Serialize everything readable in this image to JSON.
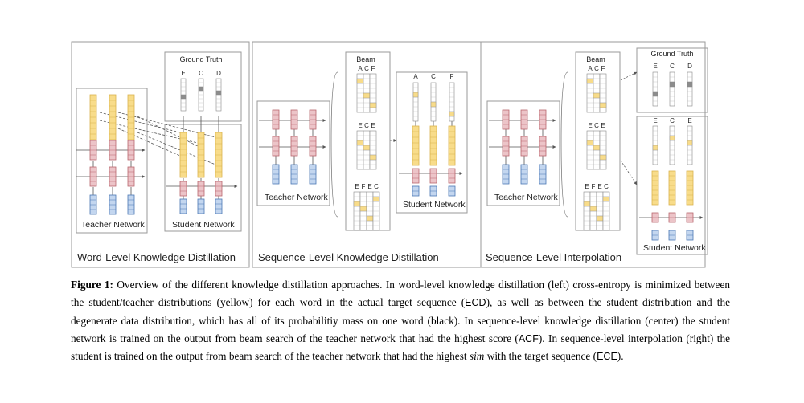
{
  "panels": {
    "word_level": {
      "title": "Word-Level Knowledge Distillation",
      "teacher_label": "Teacher Network",
      "student_label": "Student Network",
      "ground_truth": {
        "title": "Ground Truth",
        "tokens": [
          "E",
          "C",
          "D"
        ]
      }
    },
    "sequence_level": {
      "title": "Sequence-Level Knowledge Distillation",
      "teacher_label": "Teacher Network",
      "student_label": "Student Network",
      "beam": {
        "title": "Beam",
        "candidates": [
          [
            "A",
            "C",
            "F"
          ],
          [
            "E",
            "C",
            "E"
          ],
          [
            "E",
            "F",
            "E",
            "C"
          ]
        ]
      },
      "output_tokens": [
        "A",
        "C",
        "F"
      ]
    },
    "interpolation": {
      "title": "Sequence-Level Interpolation",
      "teacher_label": "Teacher Network",
      "student_label": "Student Network",
      "beam": {
        "title": "Beam",
        "candidates": [
          [
            "A",
            "C",
            "F"
          ],
          [
            "E",
            "C",
            "E"
          ],
          [
            "E",
            "F",
            "E",
            "C"
          ]
        ]
      },
      "ground_truth": {
        "title": "Ground Truth",
        "tokens": [
          "E",
          "C",
          "D"
        ]
      },
      "output_tokens": [
        "E",
        "C",
        "E"
      ]
    }
  },
  "caption": {
    "label": "Figure 1:",
    "s1": " Overview of the different knowledge distillation approaches. In word-level knowledge distillation (left) cross-entropy is minimized between the student/teacher distributions (yellow) for each word in the actual target sequence (",
    "s1_code": "ECD",
    "s2": "), as well as between the student distribution and the degenerate data distribution, which has all of its probabilitiy mass on one word (black). In sequence-level knowledge distillation (center) the student network is trained on the output from beam search of the teacher network that had the highest score (",
    "s2_code": "ACF",
    "s3": "). In sequence-level interpolation (right) the student is trained on the output from beam search of the teacher network that had the highest ",
    "s3_ital": "sim",
    "s4": " with the target sequence (",
    "s4_code": "ECE",
    "s5": ")."
  },
  "colors": {
    "yellow": "#f8dc8a",
    "yellow_stroke": "#d9b34e",
    "red": "#ecc4c8",
    "red_stroke": "#b9666e",
    "blue": "#c3d6ef",
    "blue_stroke": "#4b78b4",
    "gray": "#8c8c8c",
    "panel_stroke": "#9a9a9a"
  }
}
